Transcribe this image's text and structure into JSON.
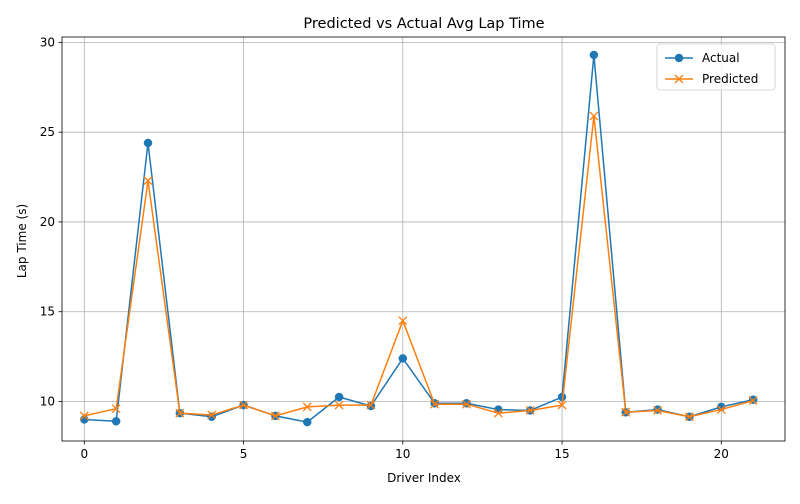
{
  "chart_data": {
    "type": "line",
    "title": "Predicted vs Actual Avg Lap Time",
    "xlabel": "Driver Index",
    "ylabel": "Lap Time (s)",
    "x": [
      0,
      1,
      2,
      3,
      4,
      5,
      6,
      7,
      8,
      9,
      10,
      11,
      12,
      13,
      14,
      15,
      16,
      17,
      18,
      19,
      20,
      21
    ],
    "xlim": [
      -0.7,
      22.0
    ],
    "ylim": [
      7.8,
      30.3
    ],
    "xticks": [
      0,
      5,
      10,
      15,
      20
    ],
    "yticks": [
      10,
      15,
      20,
      25,
      30
    ],
    "grid": true,
    "legend_position": "top-right",
    "series": [
      {
        "name": "Actual",
        "marker": "circle",
        "color": "#1f77b4",
        "values": [
          9.0,
          8.9,
          24.4,
          9.35,
          9.15,
          9.8,
          9.2,
          8.85,
          10.25,
          9.75,
          12.4,
          9.9,
          9.9,
          9.55,
          9.5,
          10.25,
          29.3,
          9.4,
          9.55,
          9.15,
          9.7,
          10.1
        ]
      },
      {
        "name": "Predicted",
        "marker": "x",
        "color": "#ff7f0e",
        "values": [
          9.2,
          9.6,
          22.3,
          9.35,
          9.25,
          9.8,
          9.2,
          9.7,
          9.8,
          9.8,
          14.5,
          9.85,
          9.85,
          9.35,
          9.5,
          9.8,
          25.9,
          9.4,
          9.5,
          9.15,
          9.55,
          10.05
        ]
      }
    ]
  }
}
